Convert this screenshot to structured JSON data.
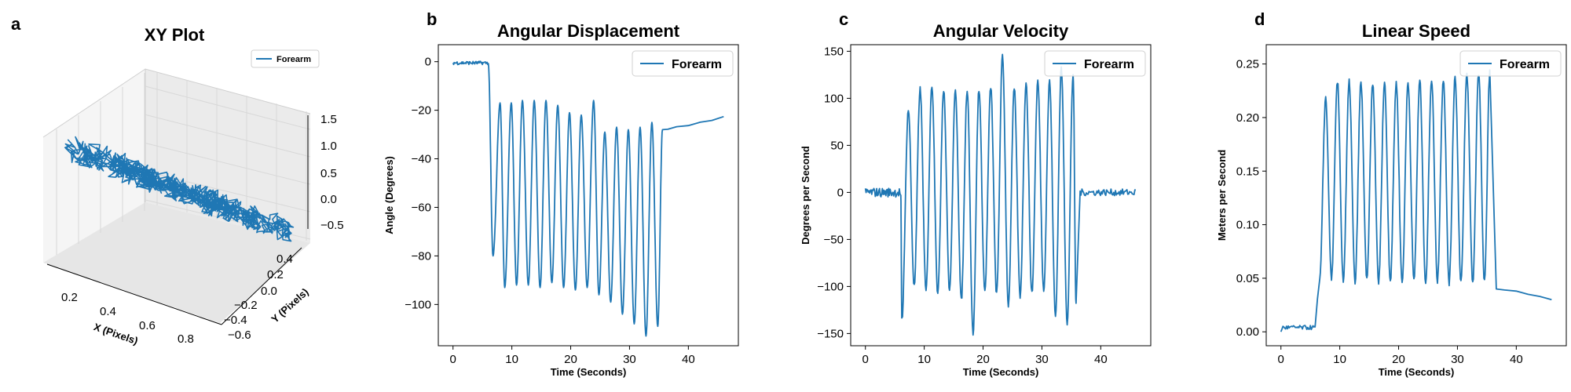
{
  "colors": {
    "series": "#1f77b4",
    "axis": "#000000",
    "pane": "#f0f0f0",
    "grid3d": "#cfcfcf"
  },
  "chart_data": [
    {
      "letter": "a",
      "type": "line3d",
      "title": "XY Plot",
      "legend": [
        "Forearm"
      ],
      "legend_loc": "upper-right",
      "xlabel": "X (Pixels)",
      "ylabel": "Y (Pixels)",
      "zlabel": "",
      "xticks": [
        "0.2",
        "0.4",
        "0.6",
        "0.8"
      ],
      "yticks": [
        "−0.6",
        "−0.4",
        "−0.2",
        "0.0",
        "0.2",
        "0.4"
      ],
      "zticks": [
        "−0.5",
        "0.0",
        "0.5",
        "1.0",
        "1.5"
      ],
      "xlim": [
        0.1,
        0.9
      ],
      "ylim": [
        -0.6,
        0.5
      ],
      "zlim": [
        -0.5,
        1.5
      ],
      "series": [
        {
          "name": "Forearm",
          "x": [
            0.12,
            0.9
          ],
          "y": [
            0.5,
            -0.6
          ],
          "z": [
            0.3,
            -0.3
          ],
          "note_noise": 0.0
        }
      ]
    },
    {
      "letter": "b",
      "type": "line",
      "title": "Angular Displacement",
      "legend": [
        "Forearm"
      ],
      "legend_loc": "upper-right",
      "xlabel": "Time (Seconds)",
      "ylabel": "Angle (Degrees)",
      "xlim": [
        -2.5,
        48.5
      ],
      "ylim": [
        -117,
        7
      ],
      "xticks": [
        "0",
        "10",
        "20",
        "30",
        "40"
      ],
      "yticks": [
        "0",
        "−20",
        "−40",
        "−60",
        "−80",
        "−100"
      ],
      "series": [
        {
          "name": "Forearm",
          "baseline_start": [
            0,
            0,
            6.0,
            -1
          ],
          "cycles": [
            [
              6.8,
              -80
            ],
            [
              8.0,
              -17
            ],
            [
              8.8,
              -93
            ],
            [
              9.9,
              -17
            ],
            [
              10.8,
              -92
            ],
            [
              11.8,
              -16
            ],
            [
              12.8,
              -92
            ],
            [
              13.8,
              -16
            ],
            [
              14.8,
              -93
            ],
            [
              15.8,
              -16
            ],
            [
              16.8,
              -91
            ],
            [
              17.8,
              -18
            ],
            [
              18.8,
              -93
            ],
            [
              19.8,
              -21
            ],
            [
              20.8,
              -94
            ],
            [
              21.8,
              -22
            ],
            [
              22.8,
              -93
            ],
            [
              23.9,
              -16
            ],
            [
              24.8,
              -96
            ],
            [
              25.8,
              -29
            ],
            [
              26.8,
              -99
            ],
            [
              27.8,
              -27
            ],
            [
              28.8,
              -104
            ],
            [
              29.8,
              -28
            ],
            [
              30.8,
              -108
            ],
            [
              31.8,
              -27
            ],
            [
              32.8,
              -113
            ],
            [
              33.8,
              -25
            ],
            [
              34.8,
              -109
            ],
            [
              35.6,
              -28
            ]
          ],
          "tail": [
            [
              36.5,
              -28
            ],
            [
              38,
              -27
            ],
            [
              40,
              -26
            ],
            [
              42,
              -25
            ],
            [
              44,
              -24
            ],
            [
              46,
              -23
            ]
          ]
        }
      ]
    },
    {
      "letter": "c",
      "type": "line",
      "title": "Angular Velocity",
      "legend": [
        "Forearm"
      ],
      "legend_loc": "upper-right",
      "xlabel": "Time (Seconds)",
      "ylabel": "Degrees per Second",
      "xlim": [
        -2.5,
        48.5
      ],
      "ylim": [
        -163,
        157
      ],
      "xticks": [
        "0",
        "10",
        "20",
        "30",
        "40"
      ],
      "yticks": [
        "150",
        "100",
        "50",
        "0",
        "−50",
        "−100",
        "−150"
      ],
      "series": [
        {
          "name": "Forearm",
          "peaks": [
            [
              7.3,
              88
            ],
            [
              9.3,
              110
            ],
            [
              11.3,
              114
            ],
            [
              13.3,
              110
            ],
            [
              15.3,
              108
            ],
            [
              17.3,
              110
            ],
            [
              19.3,
              110
            ],
            [
              21.3,
              112
            ],
            [
              23.3,
              144
            ],
            [
              25.3,
              110
            ],
            [
              27.3,
              116
            ],
            [
              29.3,
              118
            ],
            [
              31.3,
              118
            ],
            [
              33.3,
              132
            ],
            [
              35.3,
              125
            ]
          ],
          "troughs": [
            [
              6.2,
              -135
            ],
            [
              8.3,
              -100
            ],
            [
              10.3,
              -105
            ],
            [
              12.3,
              -108
            ],
            [
              14.3,
              -104
            ],
            [
              16.3,
              -115
            ],
            [
              18.3,
              -150
            ],
            [
              20.3,
              -105
            ],
            [
              22.3,
              -108
            ],
            [
              24.3,
              -120
            ],
            [
              26.3,
              -110
            ],
            [
              28.3,
              -108
            ],
            [
              30.3,
              -104
            ],
            [
              32.3,
              -132
            ],
            [
              34.3,
              -138
            ],
            [
              35.8,
              -118
            ]
          ],
          "rest": [
            [
              0,
              0
            ],
            [
              6,
              0
            ],
            [
              36.5,
              0
            ],
            [
              46,
              0
            ]
          ]
        }
      ]
    },
    {
      "letter": "d",
      "type": "line",
      "title": "Linear Speed",
      "legend": [
        "Forearm"
      ],
      "legend_loc": "upper-right",
      "xlabel": "Time (Seconds)",
      "ylabel": "Meters per Second",
      "xlim": [
        -2.5,
        48.5
      ],
      "ylim": [
        -0.013,
        0.268
      ],
      "xticks": [
        "0",
        "10",
        "20",
        "30",
        "40"
      ],
      "yticks": [
        "0.25",
        "0.20",
        "0.15",
        "0.10",
        "0.05",
        "0.00"
      ],
      "series": [
        {
          "name": "Forearm",
          "peaks": [
            [
              7.6,
              0.218
            ],
            [
              9.6,
              0.233
            ],
            [
              11.6,
              0.233
            ],
            [
              13.6,
              0.232
            ],
            [
              15.6,
              0.231
            ],
            [
              17.6,
              0.232
            ],
            [
              19.6,
              0.232
            ],
            [
              21.6,
              0.233
            ],
            [
              23.6,
              0.234
            ],
            [
              25.6,
              0.236
            ],
            [
              27.6,
              0.236
            ],
            [
              29.6,
              0.238
            ],
            [
              31.6,
              0.24
            ],
            [
              33.6,
              0.242
            ],
            [
              35.5,
              0.243
            ]
          ],
          "troughs": [
            [
              8.6,
              0.05
            ],
            [
              10.6,
              0.048
            ],
            [
              12.6,
              0.046
            ],
            [
              14.6,
              0.048
            ],
            [
              16.6,
              0.046
            ],
            [
              18.6,
              0.048
            ],
            [
              20.6,
              0.046
            ],
            [
              22.6,
              0.048
            ],
            [
              24.6,
              0.046
            ],
            [
              26.6,
              0.048
            ],
            [
              28.6,
              0.046
            ],
            [
              30.6,
              0.047
            ],
            [
              32.6,
              0.046
            ],
            [
              34.6,
              0.046
            ]
          ],
          "start": [
            [
              0,
              0.001
            ],
            [
              5.8,
              0.004
            ],
            [
              6.2,
              0.03
            ],
            [
              6.6,
              0.05
            ]
          ],
          "tail": [
            [
              36.6,
              0.04
            ],
            [
              38,
              0.039
            ],
            [
              40,
              0.038
            ],
            [
              42,
              0.035
            ],
            [
              44,
              0.033
            ],
            [
              46,
              0.03
            ]
          ]
        }
      ]
    }
  ]
}
